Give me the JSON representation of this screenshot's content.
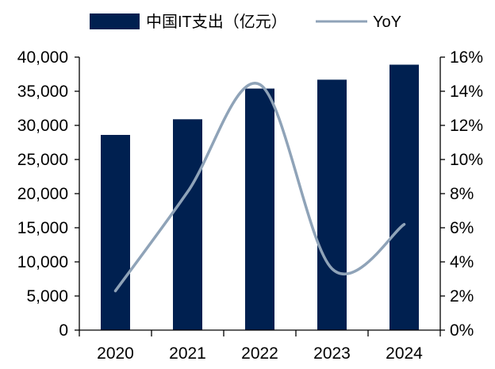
{
  "chart_data": {
    "type": "bar+line",
    "categories": [
      "2020",
      "2021",
      "2022",
      "2023",
      "2024"
    ],
    "series": [
      {
        "name": "中国IT支出（亿元）",
        "kind": "bar",
        "axis": "left",
        "color": "#002050",
        "values": [
          28600,
          30900,
          35400,
          36700,
          38900
        ]
      },
      {
        "name": "YoY",
        "kind": "line",
        "axis": "right",
        "color": "#8FA3B8",
        "values": [
          2.3,
          8.1,
          14.4,
          3.6,
          6.2
        ]
      }
    ],
    "left_axis": {
      "ylim": [
        0,
        40000
      ],
      "ticks": [
        0,
        5000,
        10000,
        15000,
        20000,
        25000,
        30000,
        35000,
        40000
      ],
      "tick_labels": [
        "0",
        "5,000",
        "10,000",
        "15,000",
        "20,000",
        "25,000",
        "30,000",
        "35,000",
        "40,000"
      ]
    },
    "right_axis": {
      "ylim": [
        0,
        16
      ],
      "ticks": [
        0,
        2,
        4,
        6,
        8,
        10,
        12,
        14,
        16
      ],
      "tick_labels": [
        "0%",
        "2%",
        "4%",
        "6%",
        "8%",
        "10%",
        "12%",
        "14%",
        "16%"
      ]
    },
    "legend": {
      "position": "top",
      "entries": [
        "中国IT支出（亿元）",
        "YoY"
      ]
    },
    "grid": false,
    "title": "",
    "xlabel": "",
    "ylabel": ""
  }
}
